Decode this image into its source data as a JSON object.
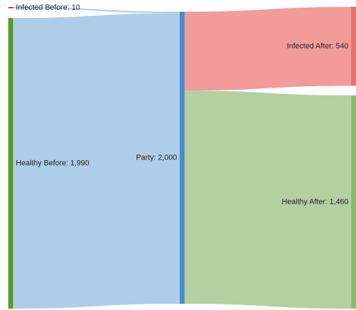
{
  "chart_data": {
    "type": "sankey",
    "nodes": [
      {
        "label": "Infected Before: 10",
        "value": 10,
        "color": "#e0403a"
      },
      {
        "label": "Healthy Before: 1,990",
        "value": 1990,
        "color": "#5a9a2e"
      },
      {
        "label": "Party: 2,000",
        "value": 2000,
        "color": "#4a8cc8"
      },
      {
        "label": "Infected After: 540",
        "value": 540,
        "color": "#e8706c"
      },
      {
        "label": "Healthy After: 1,460",
        "value": 1460,
        "color": "#8bb86e"
      }
    ],
    "links": [
      {
        "source": 0,
        "target": 2,
        "value": 10,
        "color": "#aecde8"
      },
      {
        "source": 1,
        "target": 2,
        "value": 1990,
        "color": "#aecde8"
      },
      {
        "source": 2,
        "target": 3,
        "value": 540,
        "color": "#f29b98"
      },
      {
        "source": 2,
        "target": 4,
        "value": 1460,
        "color": "#b4cfa0"
      }
    ]
  }
}
